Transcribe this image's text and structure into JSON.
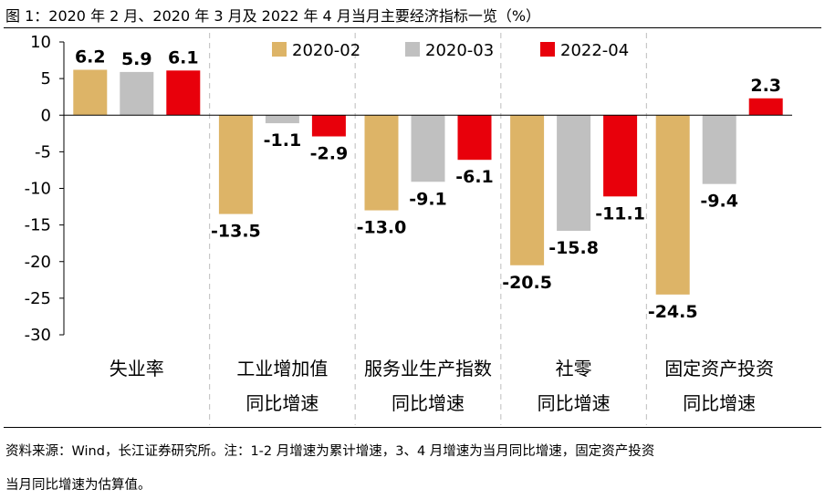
{
  "title": "图 1：2020 年 2 月、2020 年 3 月及 2022 年 4 月当月主要经济指标一览（%）",
  "source_line1": "资料来源：Wind，长江证券研究所。注：1-2 月增速为累计增速，3、4 月增速为当月同比增速，固定资产投资",
  "source_line2": "当月同比增速为估算值。",
  "chart_data": {
    "type": "bar",
    "title": "2020 年 2 月、2020 年 3 月及 2022 年 4 月当月主要经济指标一览（%）",
    "xlabel": "",
    "ylabel": "",
    "ylim": [
      -30,
      10
    ],
    "yticks": [
      10,
      5,
      0,
      -5,
      -10,
      -15,
      -20,
      -25,
      -30
    ],
    "grid": false,
    "legend_position": "top-center",
    "categories": [
      [
        "失业率"
      ],
      [
        "工业增加值",
        "同比增速"
      ],
      [
        "服务业生产指数",
        "同比增速"
      ],
      [
        "社零",
        "同比增速"
      ],
      [
        "固定资产投资",
        "同比增速"
      ]
    ],
    "series": [
      {
        "name": "2020-02",
        "color": "#DDB467",
        "values": [
          6.2,
          -13.5,
          -13.0,
          -20.5,
          -24.5
        ]
      },
      {
        "name": "2020-03",
        "color": "#C0C0C0",
        "values": [
          5.9,
          -1.1,
          -9.1,
          -15.8,
          -9.4
        ]
      },
      {
        "name": "2022-04",
        "color": "#E8000B",
        "values": [
          6.1,
          -2.9,
          -6.1,
          -11.1,
          2.3
        ]
      }
    ]
  }
}
